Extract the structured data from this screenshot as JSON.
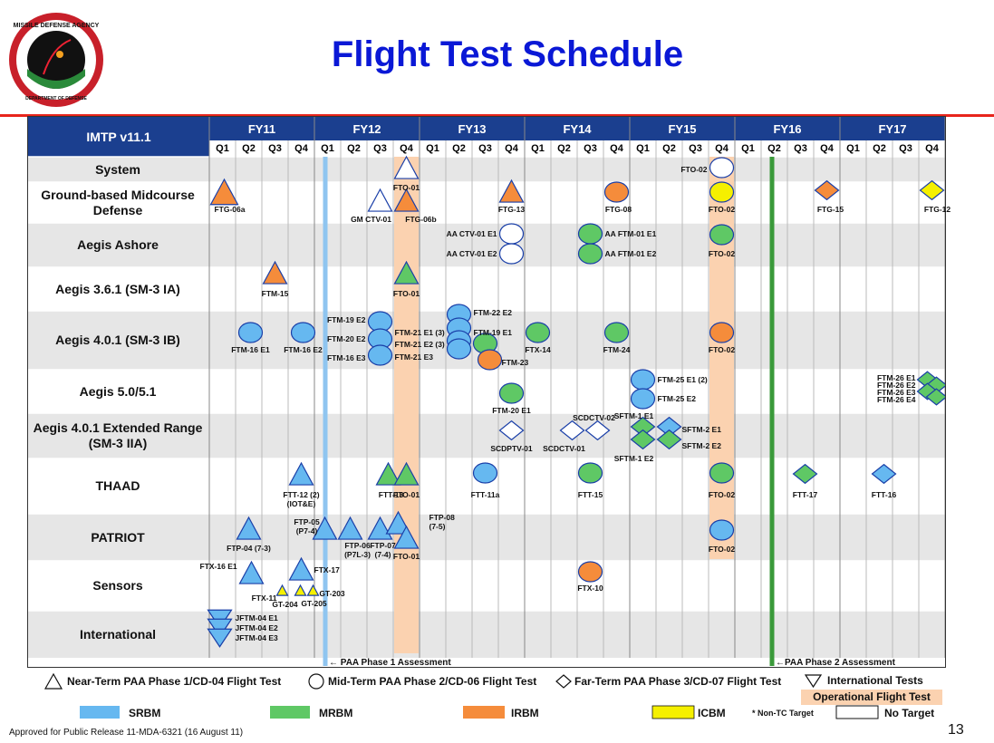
{
  "title": "Flight Test Schedule",
  "logo": {
    "name": "MISSILE DEFENSE AGENCY",
    "sub": "DEPARTMENT OF DEFENSE"
  },
  "header": {
    "label": "IMTP v11.1",
    "fiscal_years": [
      "FY11",
      "FY12",
      "FY13",
      "FY14",
      "FY15",
      "FY16",
      "FY17"
    ],
    "quarters": [
      "Q1",
      "Q2",
      "Q3",
      "Q4"
    ]
  },
  "rows": [
    {
      "label": "System"
    },
    {
      "label": "Ground-based Midcourse Defense"
    },
    {
      "label": "Aegis Ashore"
    },
    {
      "label": "Aegis 3.6.1 (SM-3 IA)"
    },
    {
      "label": "Aegis 4.0.1 (SM-3 IB)"
    },
    {
      "label": "Aegis 5.0/5.1"
    },
    {
      "label": "Aegis 4.0.1 Extended Range (SM-3 IIA)"
    },
    {
      "label": "THAAD"
    },
    {
      "label": "PATRIOT"
    },
    {
      "label": "Sensors"
    },
    {
      "label": "International"
    }
  ],
  "test_labels": {
    "fto01_sys": "FTO-01",
    "fto02_sys": "FTO-02",
    "ftg06a": "FTG-06a",
    "gmctv01": "GM CTV-01",
    "ftg06b": "FTG-06b",
    "ftg13": "FTG-13",
    "ftg08": "FTG-08",
    "fto02_gmd": "FTO-02",
    "ftg15": "FTG-15",
    "ftg12": "FTG-12",
    "aactv01e1": "AA CTV-01 E1",
    "aactv01e2": "AA CTV-01 E2",
    "aaftm01e1": "AA FTM-01 E1",
    "aaftm01e2": "AA FTM-01 E2",
    "fto02_aa": "FTO-02",
    "ftm15": "FTM-15",
    "fto01_361": "FTO-01",
    "ftm16e1": "FTM-16 E1",
    "ftm16e2": "FTM-16 E2",
    "ftm19e2": "FTM-19 E2",
    "ftm20e2": "FTM-20 E2",
    "ftm16e3": "FTM-16 E3",
    "ftm21e1": "FTM-21 E1 (3)",
    "ftm21e2": "FTM-21 E2 (3)",
    "ftm21e3": "FTM-21 E3",
    "ftm22e2": "FTM-22 E2",
    "ftm19e1": "FTM-19 E1",
    "ftm23": "FTM-23",
    "ftx14": "FTX-14",
    "ftm24": "FTM-24",
    "fto02_401": "FTO-02",
    "ftm20e1": "FTM-20 E1",
    "ftm25e1": "FTM-25 E1 (2)",
    "ftm25e2": "FTM-25 E2",
    "ftm26": "FTM-26 E1\nFTM-26 E2\nFTM-26 E3\nFTM-26 E4",
    "scdptv01": "SCDPTV-01",
    "scdctv01": "SCDCTV-01",
    "scdctv02": "SCDCTV-02",
    "sftm1e1": "SFTM-1 E1",
    "sftm1e2": "SFTM-1 E2",
    "sftm2e1": "SFTM-2 E1",
    "sftm2e2": "SFTM-2 E2",
    "ftt12": "FTT-12 (2)",
    "ftt12b": "(IOT&E)",
    "ftt13": "FTT-13",
    "fto01_th": "FTO-01",
    "ftt11a": "FTT-11a",
    "ftt15": "FTT-15",
    "fto02_th": "FTO-02",
    "ftt17": "FTT-17",
    "ftt16": "FTT-16",
    "ftp04": "FTP-04 (7-3)",
    "ftp05": "FTP-05",
    "ftp05b": "(P7-4)",
    "ftp06": "FTP-06",
    "ftp06b": "(P7L-3)",
    "ftp07": "FTP-07",
    "ftp07b": "(7-4)",
    "ftp08": "FTP-08",
    "ftp08b": "(7-5)",
    "fto01_pat": "FTO-01",
    "fto02_pat": "FTO-02",
    "ftx16e1": "FTX-16 E1",
    "ftx17": "FTX-17",
    "ftx11": "FTX-11",
    "gt204": "GT-204",
    "gt205": "GT-205",
    "gt203": "GT-203",
    "ftx10": "FTX-10",
    "jftm04e1": "JFTM-04 E1",
    "jftm04e2": "JFTM-04 E2",
    "jftm04e3": "JFTM-04 E3"
  },
  "assessments": {
    "phase1": "← PAA Phase 1 Assessment",
    "phase2": "←PAA Phase 2  Assessment"
  },
  "legend": {
    "near_term": "Near-Term PAA Phase 1/CD-04 Flight Test",
    "mid_term": "Mid-Term PAA Phase 2/CD-06 Flight Test",
    "far_term": "Far-Term PAA Phase 3/CD-07 Flight Test",
    "international": "International Tests",
    "operational": "Operational Flight Test",
    "srbm": "SRBM",
    "mrbm": "MRBM",
    "irbm": "IRBM",
    "icbm": "ICBM",
    "non_tc": "* Non-TC Target",
    "no_target": "No Target"
  },
  "colors": {
    "srbm": "#66b8f0",
    "mrbm": "#5fc865",
    "irbm": "#f58c3b",
    "icbm": "#f5f000",
    "operational": "#fbd2b0",
    "header": "#1b3f8f",
    "title": "#0a18d6",
    "phase1_line": "#8fc5f0",
    "phase2_line": "#3a9a3a"
  },
  "footer": "Approved for Public Release  11-MDA-6321 (16 August 11)",
  "page_number": "13"
}
